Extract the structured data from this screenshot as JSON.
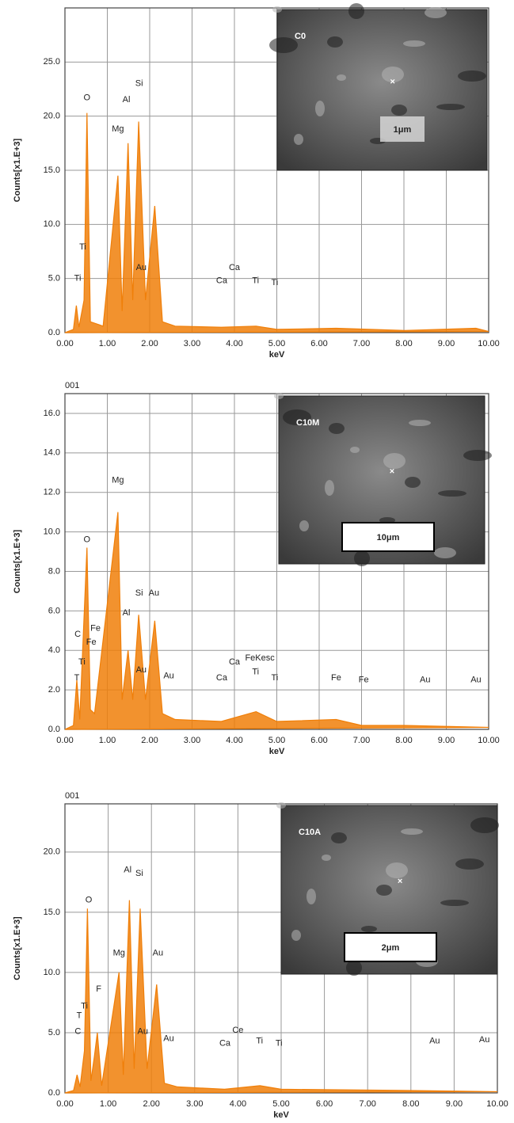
{
  "chart_data": [
    {
      "type": "line",
      "ylabel": "Counts[x1.E+3]",
      "xlabel": "keV",
      "xlim": [
        0,
        10
      ],
      "ylim": [
        0,
        30
      ],
      "grid": true,
      "xticks": [
        {
          "value": 0,
          "label": "0.00"
        },
        {
          "value": 1,
          "label": "1.00"
        },
        {
          "value": 2,
          "label": "2.00"
        },
        {
          "value": 3,
          "label": "3.00"
        },
        {
          "value": 4,
          "label": "4.00"
        },
        {
          "value": 5,
          "label": "5.00"
        },
        {
          "value": 6,
          "label": "6.00"
        },
        {
          "value": 7,
          "label": "7.00"
        },
        {
          "value": 8,
          "label": "8.00"
        },
        {
          "value": 9,
          "label": "9.00"
        },
        {
          "value": 10,
          "label": "10.00"
        }
      ],
      "yticks": [
        {
          "value": 0,
          "label": "0.0"
        },
        {
          "value": 5,
          "label": "5.0"
        },
        {
          "value": 10,
          "label": "10.0"
        },
        {
          "value": 15,
          "label": "15.0"
        },
        {
          "value": 20,
          "label": "20.0"
        },
        {
          "value": 25,
          "label": "25.0"
        }
      ],
      "x": [
        0,
        0.2,
        0.27,
        0.33,
        0.45,
        0.52,
        0.6,
        0.9,
        1.25,
        1.35,
        1.49,
        1.6,
        1.74,
        1.9,
        2.12,
        2.3,
        2.6,
        3.69,
        4.51,
        5,
        6.4,
        8,
        9.7,
        10
      ],
      "series": [
        {
          "color": "#f07f09",
          "values": [
            0,
            0.3,
            2.5,
            0.5,
            3,
            20.3,
            1,
            0.6,
            14.5,
            2,
            17.5,
            3,
            19.5,
            3,
            11.7,
            1,
            0.6,
            0.5,
            0.6,
            0.3,
            0.4,
            0.2,
            0.4,
            0.1
          ]
        }
      ],
      "annotations": [
        {
          "text": "O",
          "x": 0.52,
          "y": 21.7
        },
        {
          "text": "Mg",
          "x": 1.25,
          "y": 18.8
        },
        {
          "text": "Al",
          "x": 1.45,
          "y": 21.5
        },
        {
          "text": "Si",
          "x": 1.75,
          "y": 23
        },
        {
          "text": "Ti",
          "x": 0.42,
          "y": 7.9
        },
        {
          "text": "Ti",
          "x": 0.3,
          "y": 5
        },
        {
          "text": "Au",
          "x": 1.8,
          "y": 6
        },
        {
          "text": "Ca",
          "x": 3.7,
          "y": 4.8
        },
        {
          "text": "Ca",
          "x": 4.0,
          "y": 6
        },
        {
          "text": "Ti",
          "x": 4.5,
          "y": 4.8
        },
        {
          "text": "Ti",
          "x": 4.95,
          "y": 4.6
        }
      ],
      "inset": {
        "label": "C0",
        "scale": "1μm"
      }
    },
    {
      "type": "line",
      "header": "001",
      "ylabel": "Counts[x1.E+3]",
      "xlabel": "keV",
      "xlim": [
        0,
        10
      ],
      "ylim": [
        0,
        17
      ],
      "grid": true,
      "xticks": [
        {
          "value": 0,
          "label": "0.00"
        },
        {
          "value": 1,
          "label": "1.00"
        },
        {
          "value": 2,
          "label": "2.00"
        },
        {
          "value": 3,
          "label": "3.00"
        },
        {
          "value": 4,
          "label": "4.00"
        },
        {
          "value": 5,
          "label": "5.00"
        },
        {
          "value": 6,
          "label": "6.00"
        },
        {
          "value": 7,
          "label": "7.00"
        },
        {
          "value": 8,
          "label": "8.00"
        },
        {
          "value": 9,
          "label": "9.00"
        },
        {
          "value": 10,
          "label": "10.00"
        }
      ],
      "yticks": [
        {
          "value": 0,
          "label": "0.0"
        },
        {
          "value": 2,
          "label": "2.0"
        },
        {
          "value": 4,
          "label": "4.0"
        },
        {
          "value": 6,
          "label": "6.0"
        },
        {
          "value": 8,
          "label": "8.0"
        },
        {
          "value": 10,
          "label": "10.0"
        },
        {
          "value": 12,
          "label": "12.0"
        },
        {
          "value": 14,
          "label": "14.0"
        },
        {
          "value": 16,
          "label": "16.0"
        }
      ],
      "x": [
        0,
        0.2,
        0.28,
        0.35,
        0.52,
        0.6,
        0.7,
        1.25,
        1.35,
        1.49,
        1.6,
        1.74,
        1.9,
        2.12,
        2.3,
        2.6,
        3.69,
        4.51,
        5,
        6.4,
        7,
        8,
        10
      ],
      "series": [
        {
          "color": "#f07f09",
          "values": [
            0,
            0.2,
            2.5,
            0.5,
            9.2,
            1,
            0.8,
            11,
            1.5,
            4,
            1.5,
            5.8,
            1.5,
            5.5,
            0.8,
            0.5,
            0.4,
            0.9,
            0.4,
            0.5,
            0.2,
            0.2,
            0.1
          ]
        }
      ],
      "annotations": [
        {
          "text": "Mg",
          "x": 1.25,
          "y": 12.6
        },
        {
          "text": "O",
          "x": 0.52,
          "y": 9.6
        },
        {
          "text": "Si",
          "x": 1.75,
          "y": 6.9
        },
        {
          "text": "Au",
          "x": 2.1,
          "y": 6.9
        },
        {
          "text": "Al",
          "x": 1.45,
          "y": 5.9
        },
        {
          "text": "C",
          "x": 0.3,
          "y": 4.8
        },
        {
          "text": "Fe",
          "x": 0.72,
          "y": 5.1
        },
        {
          "text": "Fe",
          "x": 0.62,
          "y": 4.4
        },
        {
          "text": "Ti",
          "x": 0.4,
          "y": 3.4
        },
        {
          "text": "T",
          "x": 0.28,
          "y": 2.6
        },
        {
          "text": "Au",
          "x": 1.8,
          "y": 3
        },
        {
          "text": "Au",
          "x": 2.45,
          "y": 2.7
        },
        {
          "text": "Ca",
          "x": 3.7,
          "y": 2.6
        },
        {
          "text": "Ca",
          "x": 4.0,
          "y": 3.4
        },
        {
          "text": "FeKesc",
          "x": 4.6,
          "y": 3.6
        },
        {
          "text": "Ti",
          "x": 4.5,
          "y": 2.9
        },
        {
          "text": "Ti",
          "x": 4.95,
          "y": 2.6
        },
        {
          "text": "Fe",
          "x": 6.4,
          "y": 2.6
        },
        {
          "text": "Fe",
          "x": 7.05,
          "y": 2.5
        },
        {
          "text": "Au",
          "x": 8.5,
          "y": 2.5
        },
        {
          "text": "Au",
          "x": 9.7,
          "y": 2.5
        }
      ],
      "inset": {
        "label": "C10M",
        "scale": "10μm"
      }
    },
    {
      "type": "line",
      "header": "001",
      "ylabel": "Counts[x1.E+3]",
      "xlabel": "keV",
      "xlim": [
        0,
        10
      ],
      "ylim": [
        0,
        24
      ],
      "grid": true,
      "xticks": [
        {
          "value": 0,
          "label": "0.00"
        },
        {
          "value": 1,
          "label": "1.00"
        },
        {
          "value": 2,
          "label": "2.00"
        },
        {
          "value": 3,
          "label": "3.00"
        },
        {
          "value": 4,
          "label": "4.00"
        },
        {
          "value": 5,
          "label": "5.00"
        },
        {
          "value": 6,
          "label": "6.00"
        },
        {
          "value": 7,
          "label": "7.00"
        },
        {
          "value": 8,
          "label": "8.00"
        },
        {
          "value": 9,
          "label": "9.00"
        },
        {
          "value": 10,
          "label": "10.00"
        }
      ],
      "yticks": [
        {
          "value": 0,
          "label": "0.0"
        },
        {
          "value": 5,
          "label": "5.0"
        },
        {
          "value": 10,
          "label": "10.0"
        },
        {
          "value": 15,
          "label": "15.0"
        },
        {
          "value": 20,
          "label": "20.0"
        }
      ],
      "x": [
        0,
        0.2,
        0.28,
        0.35,
        0.45,
        0.52,
        0.6,
        0.68,
        0.75,
        0.85,
        1.25,
        1.35,
        1.49,
        1.6,
        1.74,
        1.9,
        2.12,
        2.3,
        2.6,
        3.69,
        4.51,
        5,
        8,
        10
      ],
      "series": [
        {
          "color": "#f07f09",
          "values": [
            0,
            0.2,
            1.5,
            0.5,
            3.5,
            15.3,
            1,
            3,
            5,
            0.6,
            10,
            1.5,
            16,
            2,
            15.3,
            2,
            9,
            0.8,
            0.5,
            0.3,
            0.6,
            0.3,
            0.2,
            0.1
          ]
        }
      ],
      "annotations": [
        {
          "text": "O",
          "x": 0.55,
          "y": 16
        },
        {
          "text": "Al",
          "x": 1.45,
          "y": 18.5
        },
        {
          "text": "Si",
          "x": 1.72,
          "y": 18.2
        },
        {
          "text": "Mg",
          "x": 1.25,
          "y": 11.6
        },
        {
          "text": "Au",
          "x": 2.15,
          "y": 11.6
        },
        {
          "text": "F",
          "x": 0.78,
          "y": 8.6
        },
        {
          "text": "Ti",
          "x": 0.45,
          "y": 7.2
        },
        {
          "text": "T",
          "x": 0.33,
          "y": 6.4
        },
        {
          "text": "C",
          "x": 0.3,
          "y": 5.1
        },
        {
          "text": "Au",
          "x": 1.8,
          "y": 5.1
        },
        {
          "text": "Au",
          "x": 2.4,
          "y": 4.5
        },
        {
          "text": "Ca",
          "x": 3.7,
          "y": 4.1
        },
        {
          "text": "Ce",
          "x": 4.0,
          "y": 5.2
        },
        {
          "text": "Ti",
          "x": 4.5,
          "y": 4.3
        },
        {
          "text": "Ti",
          "x": 4.95,
          "y": 4.1
        },
        {
          "text": "Au",
          "x": 8.55,
          "y": 4.3
        },
        {
          "text": "Au",
          "x": 9.7,
          "y": 4.4
        }
      ],
      "inset": {
        "label": "C10A",
        "scale": "2μm"
      }
    }
  ]
}
